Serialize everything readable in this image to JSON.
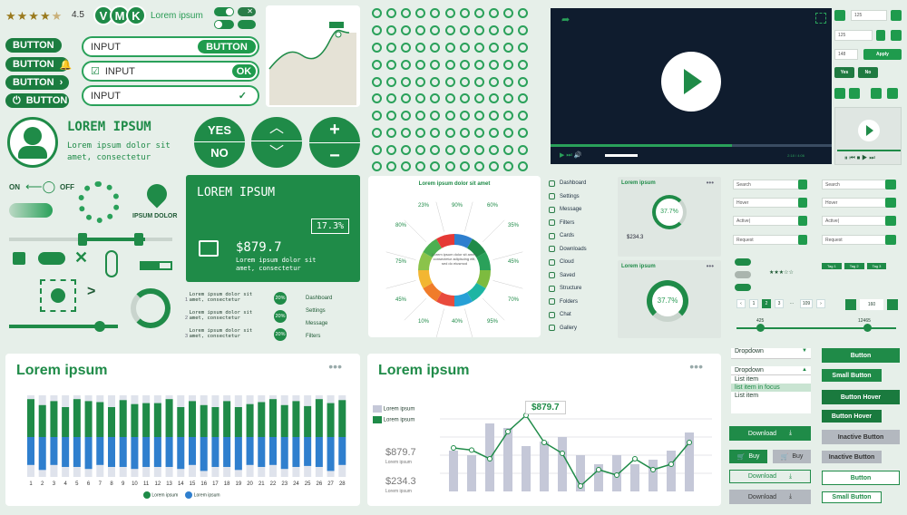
{
  "rating": {
    "value": "4.5"
  },
  "avatars": {
    "letters": [
      "V",
      "M",
      "K"
    ],
    "label": "Lorem ipsum"
  },
  "buttons": {
    "left": [
      "BUTTON",
      "BUTTON",
      "BUTTON",
      "BUTTON"
    ],
    "input1": "INPUT",
    "input1_btn": "BUTTON",
    "input2": "INPUT",
    "input2_btn": "OK",
    "input3": "INPUT"
  },
  "profile": {
    "title": "LOREM IPSUM",
    "line1": "Lorem ipsum dolor sit",
    "line2": "amet, consectetur"
  },
  "yesno": {
    "yes": "YES",
    "no": "NO"
  },
  "toggle": {
    "on": "ON",
    "off": "OFF"
  },
  "brand": {
    "label": "IPSUM DOLOR"
  },
  "green_card": {
    "title": "LOREM IPSUM",
    "percent": "17.3%",
    "amount": "$879.7",
    "line1": "Lorem ipsum dolor sit",
    "line2": "amet, consectetur"
  },
  "steps": {
    "items": [
      {
        "num": "1",
        "text": "Lorem ipsum dolor sit amet, consectetur",
        "pct": "20%"
      },
      {
        "num": "2",
        "text": "Lorem ipsum dolor sit amet, consectetur",
        "pct": "20%"
      },
      {
        "num": "3",
        "text": "Lorem ipsum dolor sit amet, consectetur",
        "pct": "20%"
      }
    ]
  },
  "mini_menu": {
    "items": [
      "Dashboard",
      "Settings",
      "Message",
      "Filters"
    ],
    "badge": "5"
  },
  "donut": {
    "title": "Lorem ipsum dolor sit amet",
    "labels": [
      "23%",
      "90%",
      "60%",
      "80%",
      "35%",
      "75%",
      "45%",
      "45%",
      "70%",
      "10%",
      "40%",
      "95%"
    ],
    "center": "Lorem ipsum dolor sit amet, consectetur adipiscing elit, sed do eiusmod"
  },
  "side_menu": {
    "items": [
      "Dashboard",
      "Settings",
      "Message",
      "Filters",
      "Cards",
      "Downloads",
      "Cloud",
      "Saved",
      "Structure",
      "Folders",
      "Chat",
      "Gallery"
    ],
    "badge": "5"
  },
  "stat_cards": {
    "title": "Lorem ipsum",
    "dots": "•••",
    "pct1": "37.7%",
    "amount1": "$234.3",
    "pct2": "37.7%"
  },
  "video": {
    "time": "2:18 / 4:06"
  },
  "spinners": {
    "values": [
      "125",
      "125",
      "148"
    ],
    "apply": "Apply",
    "yes": "Yes",
    "no": "No"
  },
  "search_fields": {
    "items": [
      "Search",
      "Hover",
      "Active|",
      "Request"
    ]
  },
  "tags": {
    "items": [
      "Tag 1",
      "Tag 2",
      "Tag 3"
    ]
  },
  "pagination": {
    "items": [
      "1",
      "2",
      "3",
      "...",
      "109"
    ],
    "stepper": "160"
  },
  "range": {
    "min": "425",
    "max": "12465"
  },
  "bar_chart": {
    "title": "Lorem ipsum",
    "legend": [
      "Lorem ipsum",
      "Lorem ipsum"
    ],
    "categories": [
      "1",
      "2",
      "3",
      "4",
      "5",
      "6",
      "7",
      "8",
      "9",
      "10",
      "11",
      "12",
      "13",
      "14",
      "15",
      "16",
      "17",
      "18",
      "19",
      "20",
      "21",
      "22",
      "23",
      "24",
      "25",
      "26",
      "27",
      "28"
    ]
  },
  "line_panel": {
    "title": "Lorem ipsum",
    "legend": [
      "Lorem ipsum",
      "Lorem ipsum"
    ],
    "amount1": "$879.7",
    "sub1": "Lorem ipsum",
    "amount2": "$234.3",
    "sub2": "Lorem ipsum",
    "tooltip": "$879.7"
  },
  "dropdown": {
    "label1": "Dropdown",
    "label2": "Dropdown",
    "items": [
      "List item",
      "list item in focus",
      "List item"
    ]
  },
  "action_buttons": {
    "download": "Download",
    "buy": "Buy",
    "buy2": "Buy",
    "download2": "Download",
    "download3": "Download"
  },
  "right_buttons": {
    "items": [
      "Button",
      "Small Button",
      "Button Hover",
      "Button Hover",
      "Inactive Button",
      "Inactive Button",
      "Button",
      "Small Button"
    ]
  },
  "chart_data": [
    {
      "type": "bar",
      "title": "Lorem ipsum",
      "categories": [
        "1",
        "2",
        "3",
        "4",
        "5",
        "6",
        "7",
        "8",
        "9",
        "10",
        "11",
        "12",
        "13",
        "14",
        "15",
        "16",
        "17",
        "18",
        "19",
        "20",
        "21",
        "22",
        "23",
        "24",
        "25",
        "26",
        "27",
        "28"
      ],
      "series": [
        {
          "name": "Lorem ipsum",
          "values": [
            38,
            32,
            36,
            30,
            38,
            36,
            35,
            30,
            37,
            33,
            34,
            34,
            38,
            30,
            36,
            32,
            30,
            36,
            30,
            33,
            35,
            38,
            32,
            36,
            31,
            38,
            34,
            37
          ]
        },
        {
          "name": "Lorem ipsum",
          "values": [
            -28,
            -33,
            -28,
            -30,
            -30,
            -32,
            -28,
            -30,
            -30,
            -32,
            -30,
            -30,
            -30,
            -32,
            -28,
            -34,
            -30,
            -30,
            -33,
            -28,
            -30,
            -28,
            -32,
            -30,
            -29,
            -30,
            -34,
            -28
          ]
        }
      ]
    },
    {
      "type": "bar",
      "series": [
        {
          "name": "Lorem ipsum",
          "values": [
            45,
            40,
            75,
            70,
            50,
            55,
            60,
            40,
            30,
            40,
            30,
            35,
            45,
            65
          ]
        },
        {
          "name": "Lorem ipsum",
          "values": [
            40,
            38,
            30,
            55,
            70,
            45,
            35,
            5,
            20,
            15,
            30,
            20,
            25,
            45
          ]
        }
      ]
    }
  ]
}
